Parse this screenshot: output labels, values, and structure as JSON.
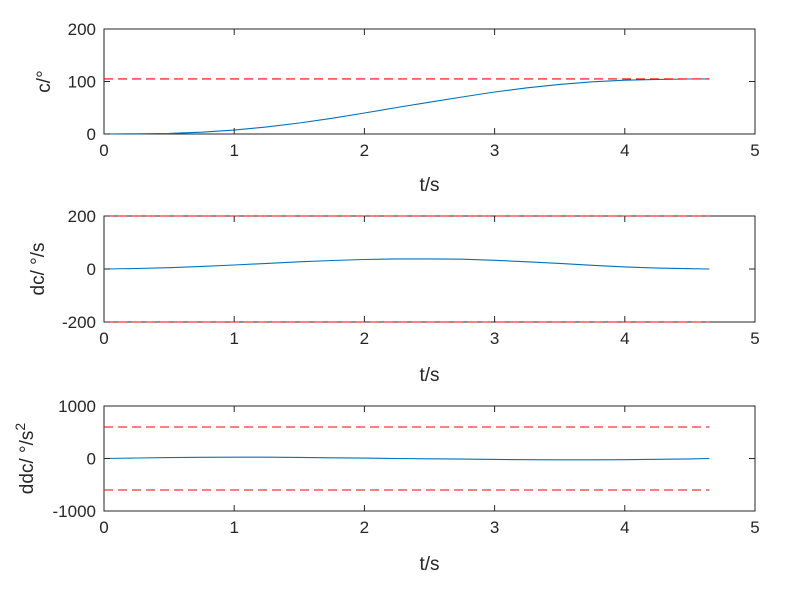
{
  "chart_data": [
    {
      "type": "line",
      "xlabel": "t/s",
      "ylabel": "c/°",
      "xlim": [
        0,
        5
      ],
      "ylim": [
        0,
        200
      ],
      "xticks": [
        "0",
        "1",
        "2",
        "3",
        "4",
        "5"
      ],
      "yticks": [
        "0",
        "100",
        "200"
      ],
      "grid": false,
      "series": [
        {
          "color": "#0072BD",
          "style": "solid",
          "x": [
            0,
            0.25,
            0.5,
            0.75,
            1.0,
            1.25,
            1.5,
            1.75,
            2.0,
            2.25,
            2.5,
            2.75,
            3.0,
            3.25,
            3.5,
            3.75,
            4.0,
            4.25,
            4.5,
            4.65
          ],
          "y": [
            0,
            0.3,
            1.2,
            3.5,
            7.5,
            13.5,
            21,
            30,
            40,
            50.5,
            60.5,
            70.5,
            80,
            88,
            94.5,
            99.5,
            102.5,
            104,
            104.8,
            105
          ]
        },
        {
          "color": "#FF0000",
          "style": "dashed",
          "x": [
            0,
            4.65
          ],
          "y": [
            105,
            105
          ]
        }
      ]
    },
    {
      "type": "line",
      "xlabel": "t/s",
      "ylabel": "dc/ °/s",
      "xlim": [
        0,
        5
      ],
      "ylim": [
        -200,
        200
      ],
      "xticks": [
        "0",
        "1",
        "2",
        "3",
        "4",
        "5"
      ],
      "yticks": [
        "-200",
        "0",
        "200"
      ],
      "grid": false,
      "series": [
        {
          "color": "#0072BD",
          "style": "solid",
          "x": [
            0,
            0.25,
            0.5,
            0.75,
            1.0,
            1.25,
            1.5,
            1.75,
            2.0,
            2.25,
            2.5,
            2.75,
            3.0,
            3.25,
            3.5,
            3.75,
            4.0,
            4.25,
            4.5,
            4.65
          ],
          "y": [
            0,
            2,
            5,
            10,
            15,
            21,
            27,
            32,
            36,
            38,
            38,
            37,
            33,
            27,
            21,
            14,
            8,
            3.5,
            1,
            0
          ]
        },
        {
          "color": "#FF0000",
          "style": "dashed",
          "x": [
            0,
            4.65
          ],
          "y": [
            200,
            200
          ]
        },
        {
          "color": "#FF0000",
          "style": "dashed",
          "x": [
            0,
            4.65
          ],
          "y": [
            -200,
            -200
          ]
        }
      ]
    },
    {
      "type": "line",
      "xlabel": "t/s",
      "ylabel": "ddc/ °/s",
      "ylabel_superscript": "2",
      "xlim": [
        0,
        5
      ],
      "ylim": [
        -1000,
        1000
      ],
      "xticks": [
        "0",
        "1",
        "2",
        "3",
        "4",
        "5"
      ],
      "yticks": [
        "-1000",
        "0",
        "1000"
      ],
      "grid": false,
      "series": [
        {
          "color": "#0072BD",
          "style": "solid",
          "x": [
            0,
            0.25,
            0.5,
            0.75,
            1.0,
            1.25,
            1.5,
            1.75,
            2.0,
            2.25,
            2.5,
            2.75,
            3.0,
            3.25,
            3.5,
            3.75,
            4.0,
            4.25,
            4.5,
            4.65
          ],
          "y": [
            0,
            10,
            18,
            23,
            25,
            24,
            20,
            14,
            8,
            0,
            -6,
            -12,
            -18,
            -22,
            -25,
            -25,
            -22,
            -16,
            -7,
            0
          ]
        },
        {
          "color": "#FF0000",
          "style": "dashed",
          "x": [
            0,
            4.65
          ],
          "y": [
            600,
            600
          ]
        },
        {
          "color": "#FF0000",
          "style": "dashed",
          "x": [
            0,
            4.65
          ],
          "y": [
            -600,
            -600
          ]
        }
      ]
    }
  ]
}
